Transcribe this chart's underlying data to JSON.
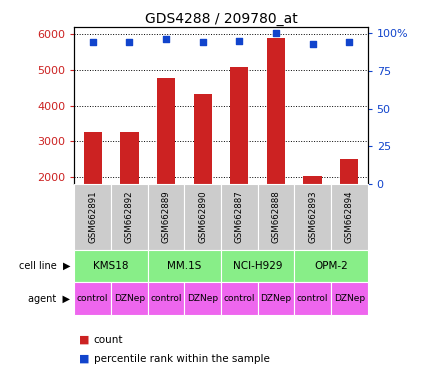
{
  "title": "GDS4288 / 209780_at",
  "samples": [
    "GSM662891",
    "GSM662892",
    "GSM662889",
    "GSM662890",
    "GSM662887",
    "GSM662888",
    "GSM662893",
    "GSM662894"
  ],
  "counts": [
    3270,
    3270,
    4760,
    4320,
    5070,
    5880,
    2030,
    2500
  ],
  "percentile_ranks": [
    94,
    94,
    96,
    94,
    95,
    100,
    93,
    94
  ],
  "cell_lines": [
    {
      "label": "KMS18",
      "start": 0,
      "end": 2
    },
    {
      "label": "MM.1S",
      "start": 2,
      "end": 4
    },
    {
      "label": "NCI-H929",
      "start": 4,
      "end": 6
    },
    {
      "label": "OPM-2",
      "start": 6,
      "end": 8
    }
  ],
  "agents": [
    "control",
    "DZNep",
    "control",
    "DZNep",
    "control",
    "DZNep",
    "control",
    "DZNep"
  ],
  "bar_color": "#cc2222",
  "dot_color": "#1144cc",
  "cell_line_color": "#88ee88",
  "agent_color": "#ee66ee",
  "sample_bg_color": "#cccccc",
  "ylim_left": [
    1800,
    6200
  ],
  "ylim_right": [
    0,
    104
  ],
  "yticks_left": [
    2000,
    3000,
    4000,
    5000,
    6000
  ],
  "yticks_right": [
    0,
    25,
    50,
    75,
    100
  ],
  "ytick_labels_right": [
    "0",
    "25",
    "50",
    "75",
    "100%"
  ]
}
